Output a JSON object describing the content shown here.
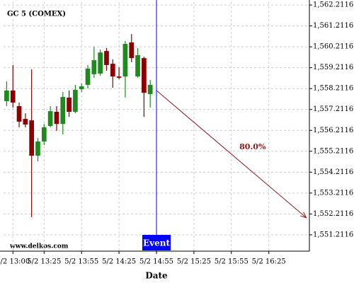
{
  "chart_data": {
    "type": "candlestick",
    "title": "GC 5 (COMEX)",
    "x_label": "Date",
    "watermark": "www.delkos.com",
    "categories": [
      null,
      "5/2 13:00",
      null,
      null,
      null,
      null,
      "5/2 13:25",
      null,
      null,
      null,
      null,
      null,
      "5/2 13:55",
      null,
      null,
      null,
      null,
      null,
      "5/2 14:25",
      null,
      null,
      null,
      null,
      null,
      "5/2 14:55",
      null,
      null,
      null,
      null,
      null,
      "5/2 15:25",
      null,
      null,
      null,
      null,
      null,
      "5/2 15:55",
      null,
      null,
      null,
      null,
      null,
      "5/2 16:25",
      null,
      null,
      null,
      null,
      null,
      null
    ],
    "open": [
      1557.61,
      1558.12,
      1557.37,
      1556.76,
      1556.69,
      1555.0,
      1555.68,
      1556.42,
      1557.1,
      1556.52,
      1557.78,
      1557.1,
      1558.18,
      1558.39,
      1558.9,
      1558.93,
      1560.01,
      1559.4,
      1558.79,
      1558.79,
      1560.42,
      1558.79,
      1559.67,
      1557.95,
      null,
      null,
      null,
      null,
      null,
      null,
      null,
      null,
      null,
      null,
      null,
      null,
      null,
      null,
      null,
      null,
      null,
      null,
      null,
      null,
      null,
      null,
      null,
      null,
      null
    ],
    "high": [
      1558.56,
      1559.34,
      1557.54,
      1557.03,
      1559.13,
      1555.85,
      1556.52,
      1557.37,
      1557.37,
      1558.05,
      1558.12,
      1558.39,
      1558.46,
      1559.34,
      1560.21,
      1560.08,
      1560.15,
      1559.61,
      1559.23,
      1560.49,
      1560.82,
      1560.15,
      1559.74,
      1558.62,
      null,
      null,
      null,
      null,
      null,
      null,
      null,
      null,
      null,
      null,
      null,
      null,
      null,
      null,
      null,
      null,
      null,
      null,
      null,
      null,
      null,
      null,
      null,
      null,
      null
    ],
    "low": [
      1557.37,
      1557.3,
      1556.36,
      1556.36,
      1552.06,
      1554.73,
      1555.51,
      1556.36,
      1556.19,
      1556.02,
      1556.86,
      1557.03,
      1558.05,
      1558.22,
      1558.73,
      1558.83,
      1559.06,
      1558.25,
      1558.66,
      1557.78,
      1559.47,
      1558.73,
      1556.86,
      1557.3,
      null,
      null,
      null,
      null,
      null,
      null,
      null,
      null,
      null,
      null,
      null,
      null,
      null,
      null,
      null,
      null,
      null,
      null,
      null,
      null,
      null,
      null,
      null,
      null,
      null
    ],
    "close": [
      1558.12,
      1557.54,
      1556.63,
      1556.49,
      1555.0,
      1555.68,
      1556.36,
      1557.13,
      1556.52,
      1557.81,
      1557.1,
      1558.15,
      1558.32,
      1559.17,
      1559.57,
      1559.94,
      1559.34,
      1558.79,
      1558.73,
      1560.35,
      1559.67,
      1559.81,
      1558.01,
      1558.39,
      null,
      null,
      null,
      null,
      null,
      null,
      null,
      null,
      null,
      null,
      null,
      null,
      null,
      null,
      null,
      null,
      null,
      null,
      null,
      null,
      null,
      null,
      null,
      null,
      null
    ],
    "up_color": "#1f8b1f",
    "down_color": "#8b0000",
    "ylim": [
      1550.43,
      1562.35
    ],
    "yticks": [
      {
        "value": 1562.2116,
        "label": "1,562.2116"
      },
      {
        "value": 1561.2116,
        "label": "1,561.2116"
      },
      {
        "value": 1560.2116,
        "label": "1,560.2116"
      },
      {
        "value": 1559.2116,
        "label": "1,559.2116"
      },
      {
        "value": 1558.2116,
        "label": "1,558.2116"
      },
      {
        "value": 1557.2116,
        "label": "1,557.2116"
      },
      {
        "value": 1556.2116,
        "label": "1,556.2116"
      },
      {
        "value": 1555.2116,
        "label": "1,555.2116"
      },
      {
        "value": 1554.2116,
        "label": "1,554.2116"
      },
      {
        "value": 1553.2116,
        "label": "1,553.2116"
      },
      {
        "value": 1552.2116,
        "label": "1,552.2116"
      },
      {
        "value": 1551.2116,
        "label": "1,551.2116"
      }
    ],
    "grid": true,
    "event": {
      "label": "Event",
      "at": "5/2 14:55",
      "color": "#0000ff"
    },
    "projection": {
      "label": "80.0%",
      "start": 1558.12,
      "end": 1552.03,
      "color": "#8b1a1a"
    }
  }
}
